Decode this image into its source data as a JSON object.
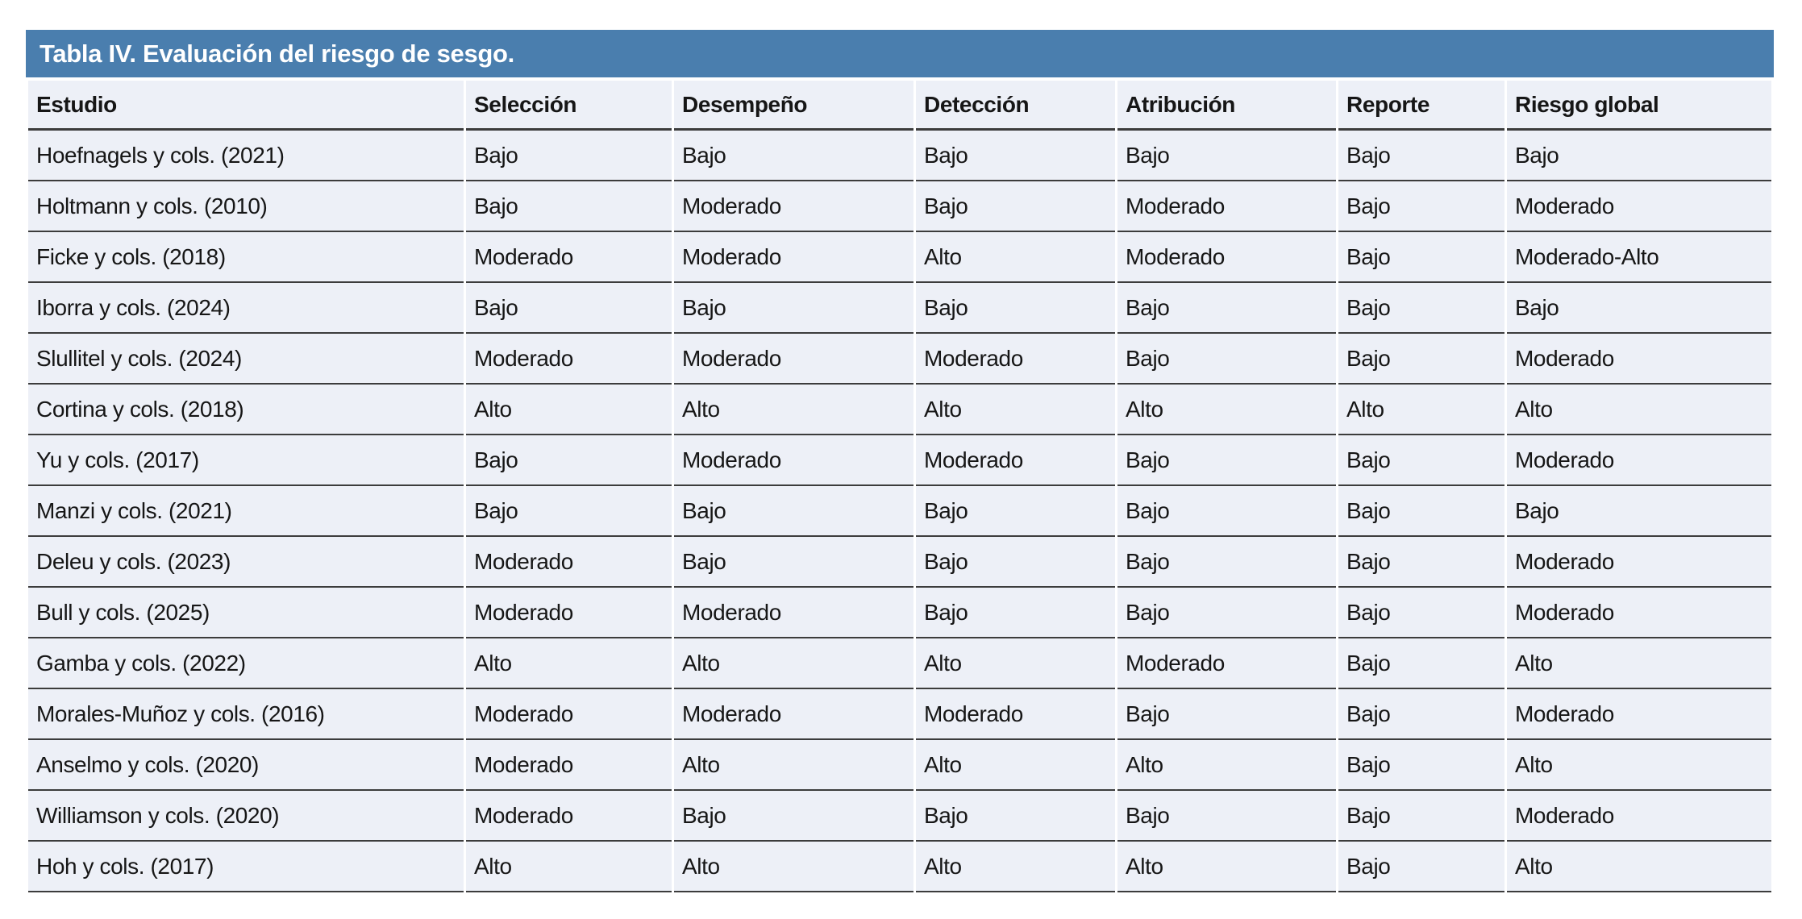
{
  "colors": {
    "title_bar_bg": "#4A7EAE",
    "title_text": "#FFFFFF",
    "row_bg": "#EDF0F7",
    "divider": "#3C3C3C",
    "body_text": "#161616",
    "page_bg": "#FFFFFF"
  },
  "table": {
    "title": "Tabla IV. Evaluación del riesgo de sesgo.",
    "columns": [
      "Estudio",
      "Selección",
      "Desempeño",
      "Detección",
      "Atribución",
      "Reporte",
      "Riesgo global"
    ],
    "rows": [
      [
        "Hoefnagels y cols. (2021)",
        "Bajo",
        "Bajo",
        "Bajo",
        "Bajo",
        "Bajo",
        "Bajo"
      ],
      [
        "Holtmann y cols. (2010)",
        "Bajo",
        "Moderado",
        "Bajo",
        "Moderado",
        "Bajo",
        "Moderado"
      ],
      [
        "Ficke y cols. (2018)",
        "Moderado",
        "Moderado",
        "Alto",
        "Moderado",
        "Bajo",
        "Moderado-Alto"
      ],
      [
        "Iborra y cols. (2024)",
        "Bajo",
        "Bajo",
        "Bajo",
        "Bajo",
        "Bajo",
        "Bajo"
      ],
      [
        "Slullitel y cols. (2024)",
        "Moderado",
        "Moderado",
        "Moderado",
        "Bajo",
        "Bajo",
        "Moderado"
      ],
      [
        "Cortina y cols. (2018)",
        "Alto",
        "Alto",
        "Alto",
        "Alto",
        "Alto",
        "Alto"
      ],
      [
        "Yu y cols. (2017)",
        "Bajo",
        "Moderado",
        "Moderado",
        "Bajo",
        "Bajo",
        "Moderado"
      ],
      [
        "Manzi y cols. (2021)",
        "Bajo",
        "Bajo",
        "Bajo",
        "Bajo",
        "Bajo",
        "Bajo"
      ],
      [
        "Deleu y cols. (2023)",
        "Moderado",
        "Bajo",
        "Bajo",
        "Bajo",
        "Bajo",
        "Moderado"
      ],
      [
        "Bull y cols. (2025)",
        "Moderado",
        "Moderado",
        "Bajo",
        "Bajo",
        "Bajo",
        "Moderado"
      ],
      [
        "Gamba y cols. (2022)",
        "Alto",
        "Alto",
        "Alto",
        "Moderado",
        "Bajo",
        "Alto"
      ],
      [
        "Morales-Muñoz y cols. (2016)",
        "Moderado",
        "Moderado",
        "Moderado",
        "Bajo",
        "Bajo",
        "Moderado"
      ],
      [
        "Anselmo y cols. (2020)",
        "Moderado",
        "Alto",
        "Alto",
        "Alto",
        "Bajo",
        "Alto"
      ],
      [
        "Williamson y cols. (2020)",
        "Moderado",
        "Bajo",
        "Bajo",
        "Bajo",
        "Bajo",
        "Moderado"
      ],
      [
        "Hoh y cols. (2017)",
        "Alto",
        "Alto",
        "Alto",
        "Alto",
        "Bajo",
        "Alto"
      ]
    ]
  }
}
